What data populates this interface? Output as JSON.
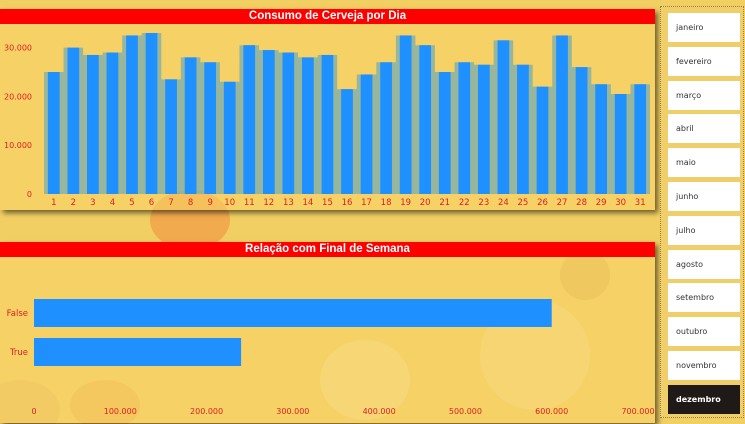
{
  "colors": {
    "bar": "#1e90ff",
    "title_bg": "#ff0000",
    "tick": "#e02020",
    "selected_month": "#1f1a17"
  },
  "chart_data": [
    {
      "type": "bar",
      "title": "Consumo de Cerveja por Dia",
      "categories": [
        "1",
        "2",
        "3",
        "4",
        "5",
        "6",
        "7",
        "8",
        "9",
        "10",
        "11",
        "12",
        "13",
        "14",
        "15",
        "16",
        "17",
        "18",
        "19",
        "20",
        "21",
        "22",
        "23",
        "24",
        "25",
        "26",
        "27",
        "28",
        "29",
        "30",
        "31"
      ],
      "values": [
        25000,
        30000,
        28500,
        29000,
        32500,
        33000,
        23500,
        28000,
        27000,
        23000,
        30500,
        29500,
        29000,
        28000,
        28500,
        21500,
        24500,
        27000,
        32500,
        30500,
        25000,
        27000,
        26500,
        31500,
        26500,
        22000,
        32500,
        26000,
        22500,
        20500,
        22500
      ],
      "ylim": [
        0,
        33000
      ],
      "yticks": [
        "0",
        "10.000",
        "20.000",
        "30.000"
      ],
      "xlabel": "",
      "ylabel": "",
      "grid": false
    },
    {
      "type": "bar",
      "orientation": "horizontal",
      "title": "Relação com Final de Semana",
      "categories": [
        "False",
        "True"
      ],
      "values": [
        600000,
        240000
      ],
      "xlim": [
        0,
        700000
      ],
      "xticks": [
        "0",
        "100.000",
        "200.000",
        "300.000",
        "400.000",
        "500.000",
        "600.000",
        "700.000"
      ],
      "xlabel": "",
      "ylabel": "",
      "grid": false
    }
  ],
  "slicer": {
    "months": [
      "janeiro",
      "fevereiro",
      "março",
      "abril",
      "maio",
      "junho",
      "julho",
      "agosto",
      "setembro",
      "outubro",
      "novembro",
      "dezembro"
    ],
    "selected": "dezembro"
  }
}
